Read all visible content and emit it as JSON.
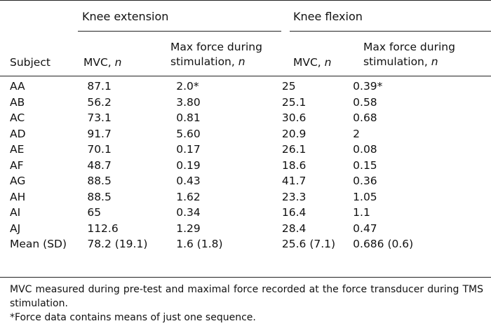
{
  "table": {
    "group_headers": {
      "knee_extension": "Knee extension",
      "knee_flexion": "Knee flexion"
    },
    "column_headers": {
      "subject": "Subject",
      "ext_mvc_label": "MVC, ",
      "ext_mvc_unit": "n",
      "ext_max_line1": "Max force during",
      "ext_max_line2": "stimulation, ",
      "ext_max_unit": "n",
      "flex_mvc_label": "MVC, ",
      "flex_mvc_unit": "n",
      "flex_max_line1": "Max force during",
      "flex_max_line2": "stimulation, ",
      "flex_max_unit": "n"
    },
    "rows": [
      {
        "subject": "AA",
        "ext_mvc": "87.1",
        "ext_max": "2.0*",
        "flex_mvc": "25",
        "flex_max": "0.39*"
      },
      {
        "subject": "AB",
        "ext_mvc": "56.2",
        "ext_max": "3.80",
        "flex_mvc": "25.1",
        "flex_max": "0.58"
      },
      {
        "subject": "AC",
        "ext_mvc": "73.1",
        "ext_max": "0.81",
        "flex_mvc": "30.6",
        "flex_max": "0.68"
      },
      {
        "subject": "AD",
        "ext_mvc": "91.7",
        "ext_max": "5.60",
        "flex_mvc": "20.9",
        "flex_max": "2"
      },
      {
        "subject": "AE",
        "ext_mvc": "70.1",
        "ext_max": "0.17",
        "flex_mvc": "26.1",
        "flex_max": "0.08"
      },
      {
        "subject": "AF",
        "ext_mvc": "48.7",
        "ext_max": "0.19",
        "flex_mvc": "18.6",
        "flex_max": "0.15"
      },
      {
        "subject": "AG",
        "ext_mvc": "88.5",
        "ext_max": "0.43",
        "flex_mvc": "41.7",
        "flex_max": "0.36"
      },
      {
        "subject": "AH",
        "ext_mvc": "88.5",
        "ext_max": "1.62",
        "flex_mvc": "23.3",
        "flex_max": "1.05"
      },
      {
        "subject": "AI",
        "ext_mvc": "65",
        "ext_max": "0.34",
        "flex_mvc": "16.4",
        "flex_max": "1.1"
      },
      {
        "subject": "AJ",
        "ext_mvc": "112.6",
        "ext_max": "1.29",
        "flex_mvc": "28.4",
        "flex_max": "0.47"
      },
      {
        "subject": "Mean (SD)",
        "ext_mvc": "78.2 (19.1)",
        "ext_max": "1.6 (1.8)",
        "flex_mvc": "25.6 (7.1)",
        "flex_max": "0.686 (0.6)"
      }
    ]
  },
  "notes": {
    "note1": "MVC measured during pre-test and maximal force recorded at the force transducer during TMS stimulation.",
    "note2": "*Force data contains means of just one sequence."
  }
}
